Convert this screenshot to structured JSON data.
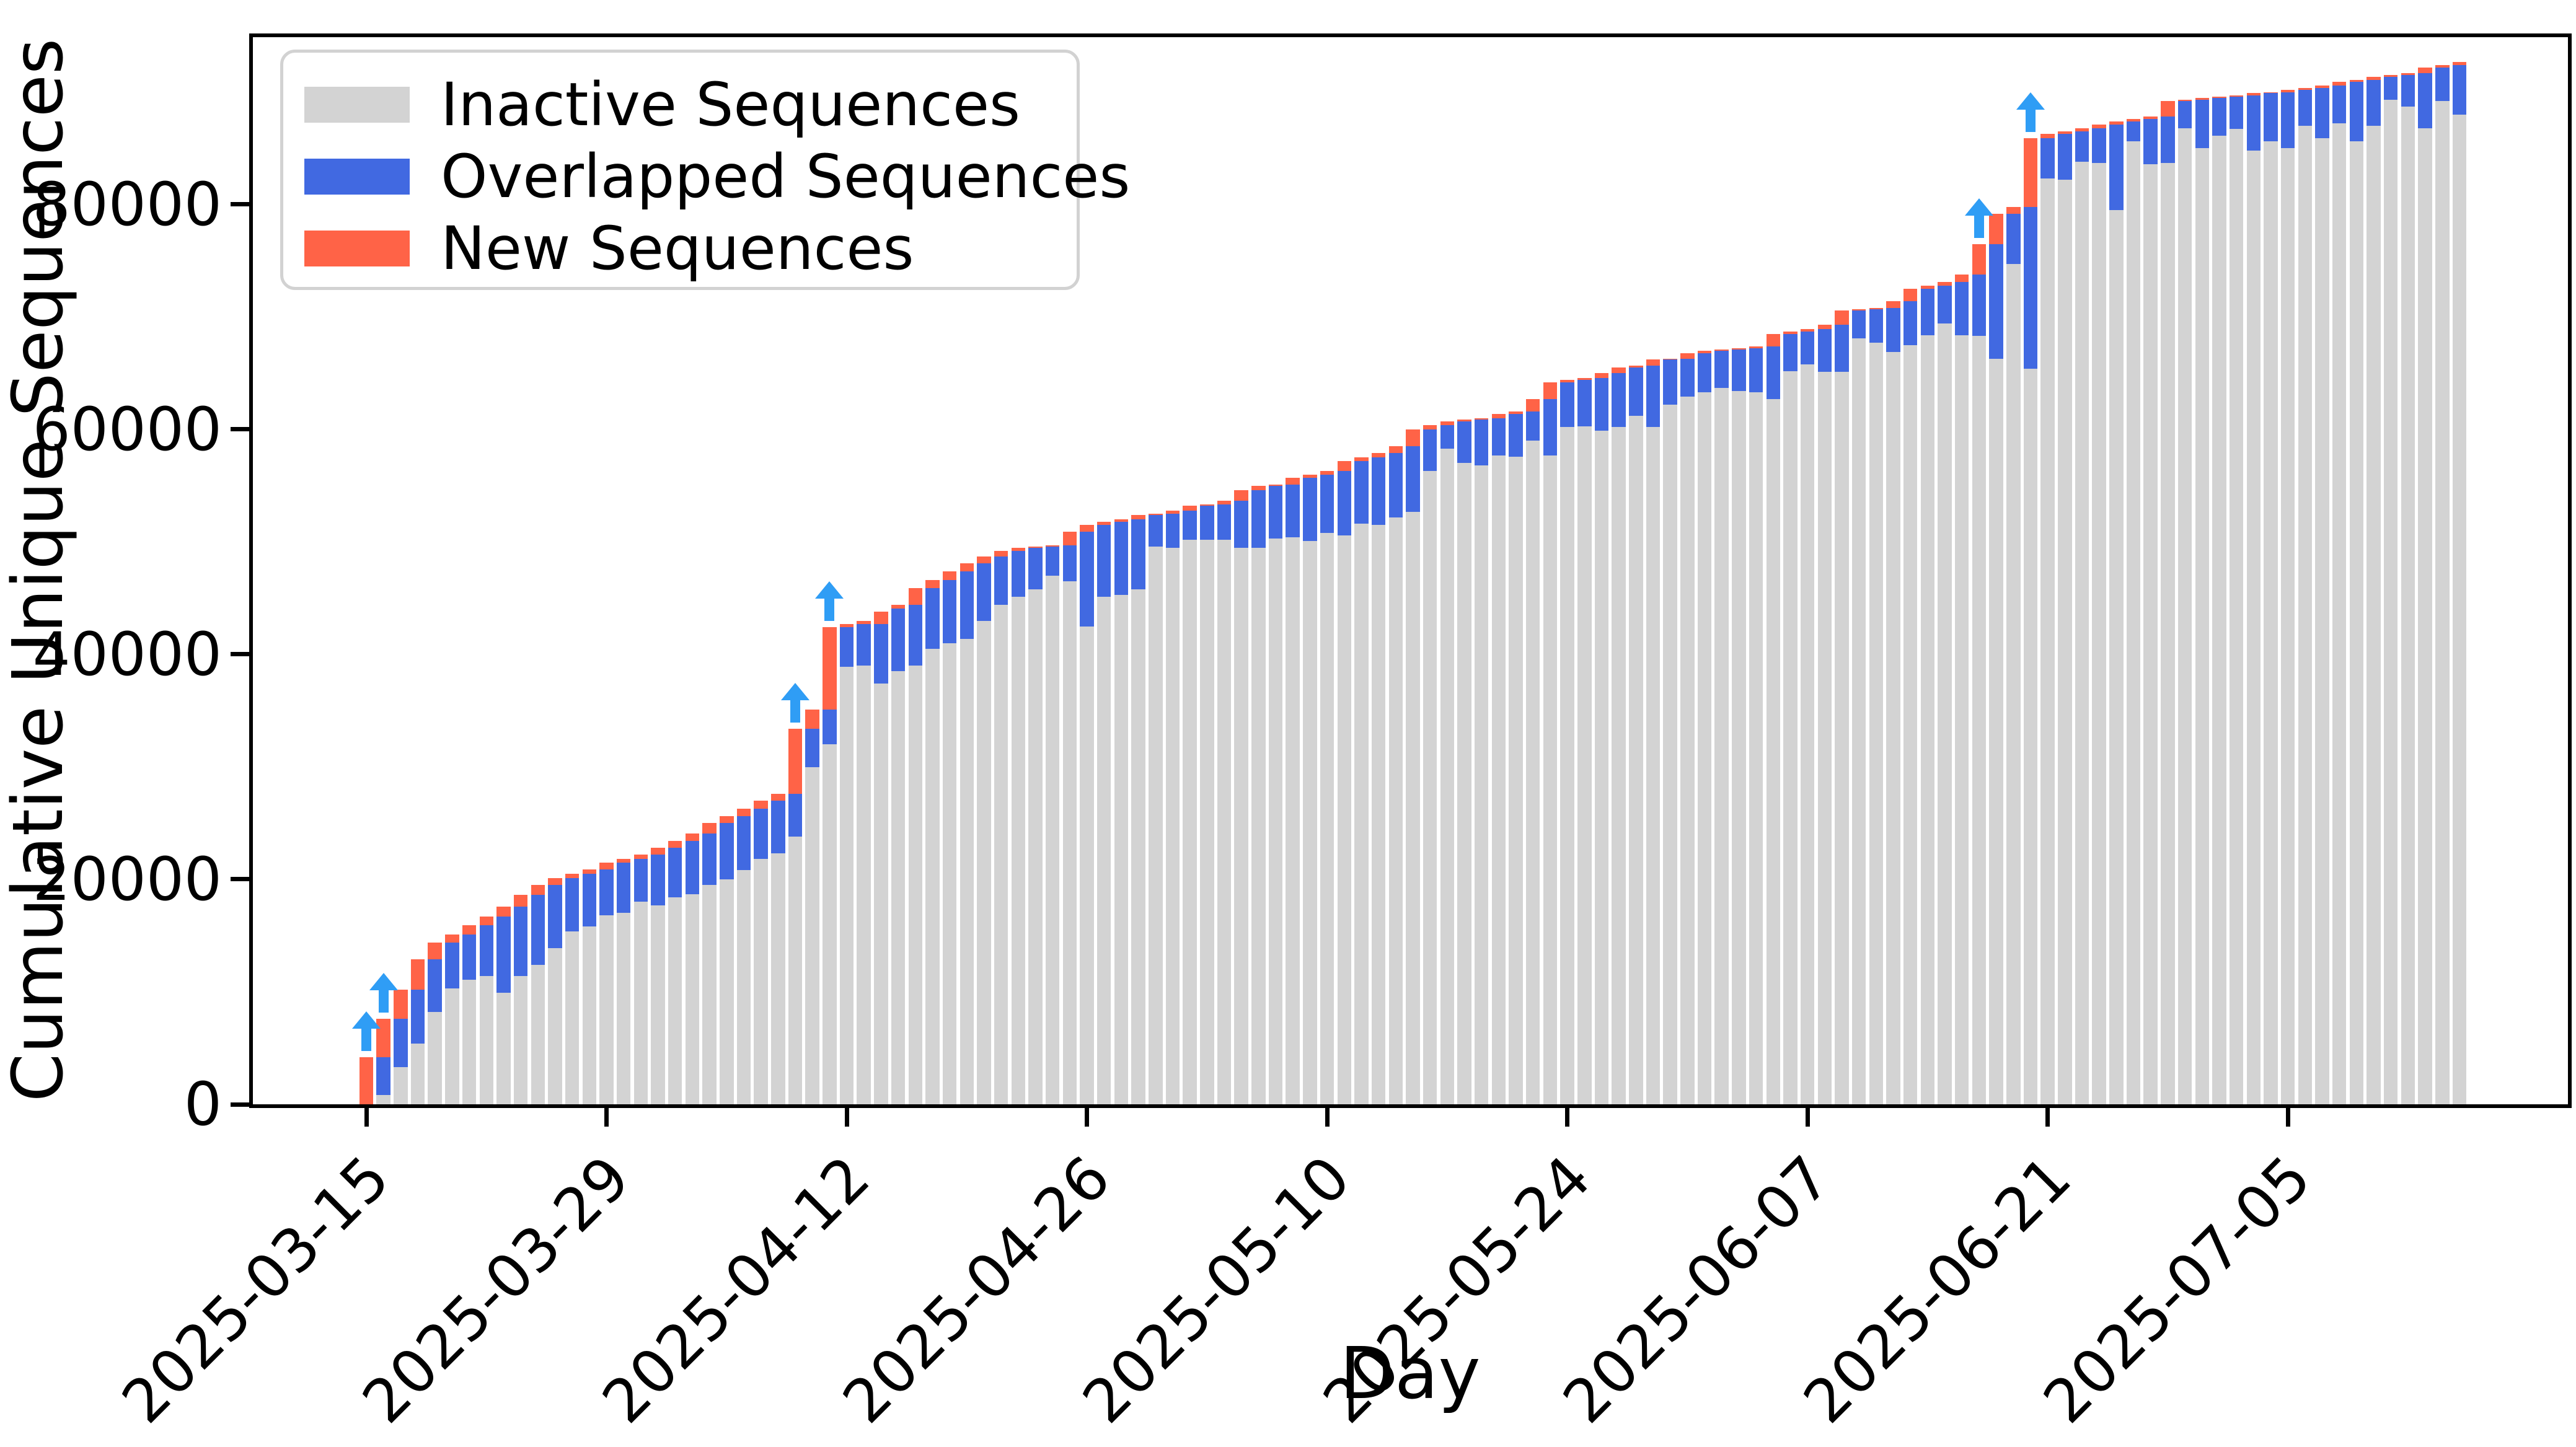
{
  "figure": {
    "background": "#ffffff"
  },
  "chart_data": {
    "type": "bar",
    "stacked": true,
    "title": "",
    "xlabel": "Day",
    "ylabel": "Cumulative Unique Sequences",
    "grid": false,
    "legend_position": "upper left",
    "ylim": [
      0,
      94876
    ],
    "y_ticks": [
      0,
      20000,
      40000,
      60000,
      80000
    ],
    "x_tick_days": [
      "2025-03-15",
      "2025-03-29",
      "2025-04-12",
      "2025-04-26",
      "2025-05-10",
      "2025-05-24",
      "2025-06-07",
      "2025-06-21",
      "2025-07-05"
    ],
    "x": [
      "2025-03-15",
      "2025-03-16",
      "2025-03-17",
      "2025-03-18",
      "2025-03-19",
      "2025-03-20",
      "2025-03-21",
      "2025-03-22",
      "2025-03-23",
      "2025-03-24",
      "2025-03-25",
      "2025-03-26",
      "2025-03-27",
      "2025-03-28",
      "2025-03-29",
      "2025-03-30",
      "2025-03-31",
      "2025-04-01",
      "2025-04-02",
      "2025-04-03",
      "2025-04-04",
      "2025-04-05",
      "2025-04-06",
      "2025-04-07",
      "2025-04-08",
      "2025-04-09",
      "2025-04-10",
      "2025-04-11",
      "2025-04-12",
      "2025-04-13",
      "2025-04-14",
      "2025-04-15",
      "2025-04-16",
      "2025-04-17",
      "2025-04-18",
      "2025-04-19",
      "2025-04-20",
      "2025-04-21",
      "2025-04-22",
      "2025-04-23",
      "2025-04-24",
      "2025-04-25",
      "2025-04-26",
      "2025-04-27",
      "2025-04-28",
      "2025-04-29",
      "2025-04-30",
      "2025-05-01",
      "2025-05-02",
      "2025-05-03",
      "2025-05-04",
      "2025-05-05",
      "2025-05-06",
      "2025-05-07",
      "2025-05-08",
      "2025-05-09",
      "2025-05-10",
      "2025-05-11",
      "2025-05-12",
      "2025-05-13",
      "2025-05-14",
      "2025-05-15",
      "2025-05-16",
      "2025-05-17",
      "2025-05-18",
      "2025-05-19",
      "2025-05-20",
      "2025-05-21",
      "2025-05-22",
      "2025-05-23",
      "2025-05-24",
      "2025-05-25",
      "2025-05-26",
      "2025-05-27",
      "2025-05-28",
      "2025-05-29",
      "2025-05-30",
      "2025-05-31",
      "2025-06-01",
      "2025-06-02",
      "2025-06-03",
      "2025-06-04",
      "2025-06-05",
      "2025-06-06",
      "2025-06-07",
      "2025-06-08",
      "2025-06-09",
      "2025-06-10",
      "2025-06-11",
      "2025-06-12",
      "2025-06-13",
      "2025-06-14",
      "2025-06-15",
      "2025-06-16",
      "2025-06-17",
      "2025-06-18",
      "2025-06-19",
      "2025-06-20",
      "2025-06-21",
      "2025-06-22",
      "2025-06-23",
      "2025-06-24",
      "2025-06-25",
      "2025-06-26",
      "2025-06-27",
      "2025-06-28",
      "2025-06-29",
      "2025-06-30",
      "2025-07-01",
      "2025-07-02",
      "2025-07-03",
      "2025-07-04",
      "2025-07-05",
      "2025-07-06",
      "2025-07-07",
      "2025-07-08",
      "2025-07-09",
      "2025-07-10",
      "2025-07-11",
      "2025-07-12",
      "2025-07-13",
      "2025-07-14",
      "2025-07-15"
    ],
    "series": [
      {
        "name": "Inactive Sequences",
        "color": "#d3d3d3",
        "values": [
          0,
          800,
          3300,
          5400,
          8200,
          10300,
          11100,
          11400,
          9900,
          11400,
          12400,
          13900,
          15400,
          15800,
          16800,
          17000,
          18000,
          17700,
          18400,
          18700,
          19500,
          20000,
          20800,
          21800,
          22300,
          23800,
          30000,
          32000,
          38900,
          39000,
          37400,
          38500,
          39000,
          40500,
          41000,
          41400,
          43000,
          44400,
          45100,
          45800,
          47000,
          46500,
          42500,
          45100,
          45300,
          45800,
          49600,
          49500,
          50200,
          50200,
          50200,
          49500,
          49500,
          50300,
          50400,
          50100,
          50800,
          50600,
          51600,
          51500,
          52200,
          52700,
          56300,
          58300,
          57000,
          56800,
          57700,
          57600,
          59000,
          57700,
          60200,
          60300,
          59900,
          60200,
          61200,
          60200,
          62200,
          62900,
          63300,
          63700,
          63400,
          63300,
          62700,
          65200,
          65800,
          65100,
          65100,
          68100,
          67700,
          66900,
          67500,
          68400,
          69400,
          68400,
          68300,
          66300,
          74700,
          65400,
          82300,
          82200,
          83800,
          83700,
          79500,
          85600,
          83600,
          83700,
          86800,
          85000,
          86100,
          86700,
          84800,
          85600,
          85000,
          87000,
          85900,
          87200,
          85600,
          87000,
          89300,
          88700,
          86800,
          89200,
          88000
        ]
      },
      {
        "name": "Overlapped Sequences",
        "color": "#4169e1",
        "values": [
          0,
          3400,
          4300,
          4800,
          4700,
          4100,
          4000,
          4500,
          6800,
          6200,
          6200,
          5600,
          4700,
          4700,
          4100,
          4500,
          3800,
          4500,
          4400,
          4700,
          4600,
          5000,
          4800,
          4500,
          4700,
          3800,
          3400,
          3100,
          3500,
          3700,
          5300,
          5600,
          5400,
          5400,
          5600,
          6000,
          5100,
          4300,
          4100,
          3700,
          2600,
          3200,
          8400,
          6400,
          6500,
          6200,
          2800,
          3000,
          2600,
          3000,
          3150,
          4150,
          5100,
          4700,
          4700,
          5600,
          5200,
          5700,
          5600,
          6000,
          5700,
          5800,
          3700,
          2100,
          3700,
          4100,
          3300,
          3800,
          2600,
          5000,
          4000,
          4100,
          4700,
          4800,
          4300,
          5500,
          4000,
          3400,
          3500,
          3300,
          3700,
          3900,
          4700,
          3300,
          2900,
          3800,
          4200,
          2500,
          3000,
          3900,
          3900,
          4100,
          3400,
          4700,
          5500,
          10200,
          4500,
          14400,
          3600,
          4100,
          2700,
          3100,
          7600,
          1800,
          4000,
          4100,
          2400,
          4300,
          3400,
          2900,
          4900,
          4300,
          5000,
          3200,
          4450,
          3400,
          5300,
          4100,
          2050,
          2800,
          4900,
          3000,
          4400
        ]
      },
      {
        "name": "New Sequences",
        "color": "#ff6347",
        "values": [
          4200,
          3400,
          2600,
          2700,
          1500,
          700,
          800,
          800,
          900,
          1000,
          900,
          600,
          400,
          400,
          600,
          300,
          400,
          600,
          600,
          700,
          900,
          600,
          700,
          700,
          600,
          5800,
          1700,
          7300,
          300,
          300,
          1100,
          300,
          1500,
          700,
          800,
          700,
          600,
          500,
          300,
          100,
          100,
          1200,
          600,
          300,
          200,
          400,
          100,
          300,
          400,
          150,
          300,
          950,
          400,
          100,
          600,
          300,
          300,
          900,
          300,
          400,
          600,
          1500,
          400,
          300,
          200,
          100,
          400,
          200,
          1100,
          1500,
          200,
          200,
          400,
          500,
          200,
          500,
          100,
          500,
          200,
          100,
          100,
          200,
          1100,
          200,
          200,
          400,
          1300,
          100,
          100,
          600,
          1100,
          300,
          300,
          700,
          2700,
          2700,
          600,
          6100,
          400,
          200,
          300,
          300,
          300,
          200,
          200,
          1400,
          100,
          200,
          100,
          100,
          200,
          100,
          200,
          150,
          250,
          300,
          200,
          250,
          150,
          200,
          500,
          200,
          300
        ]
      }
    ],
    "annotations": {
      "arrow_color": "#2f9df5",
      "arrow_days": [
        "2025-03-15",
        "2025-03-16",
        "2025-04-09",
        "2025-04-11",
        "2025-06-17",
        "2025-06-20"
      ]
    }
  }
}
